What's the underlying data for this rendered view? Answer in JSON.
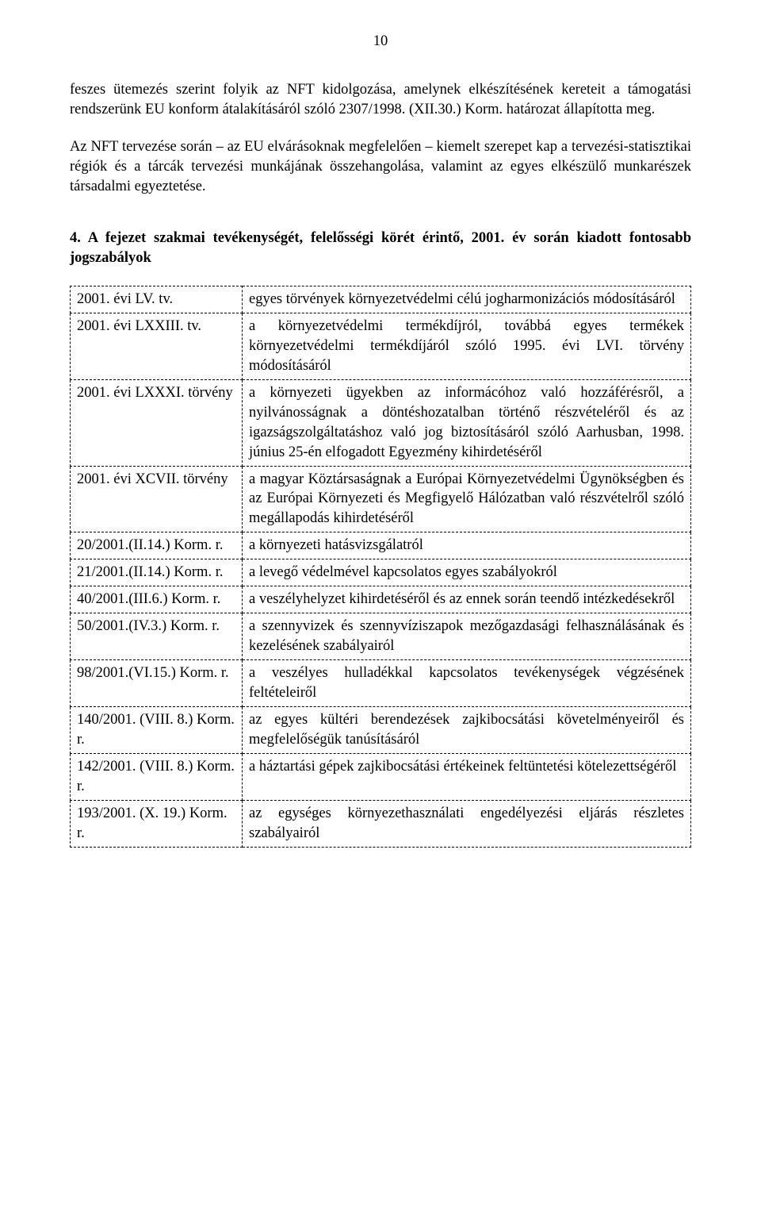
{
  "page_number": "10",
  "para1": "feszes ütemezés szerint folyik az NFT kidolgozása, amelynek elkészítésének kereteit a támogatási rendszerünk EU konform átalakításáról szóló 2307/1998. (XII.30.) Korm. határozat állapította meg.",
  "para2": "Az NFT tervezése során – az EU elvárásoknak megfelelően – kiemelt szerepet kap a tervezési-statisztikai régiók és a tárcák tervezési munkájának összehangolása, valamint az egyes elkészülő munkarészek társadalmi egyeztetése.",
  "section_heading": "4. A fejezet szakmai tevékenységét, felelősségi körét érintő, 2001. év során kiadott fontosabb jogszabályok",
  "table": {
    "rows": [
      {
        "ref": "2001. évi LV. tv.",
        "desc": "egyes törvények környezetvédelmi célú jogharmonizációs módosításáról"
      },
      {
        "ref": "2001. évi LXXIII. tv.",
        "desc": "a környezetvédelmi termékdíjról, továbbá egyes termékek környezetvédelmi termékdíjáról szóló 1995. évi LVI. törvény módosításáról"
      },
      {
        "ref": "2001. évi LXXXI. törvény",
        "desc": "a környezeti ügyekben az informácóhoz való hozzáférésről, a nyilvánosságnak a döntéshozatalban történő részvételéről és az igazságszolgáltatáshoz való jog biztosításáról szóló Aarhusban, 1998. június 25-én elfogadott Egyezmény kihirdetéséről"
      },
      {
        "ref": "2001. évi XCVII. törvény",
        "desc": "a magyar Köztársaságnak a Európai Környezetvédelmi Ügynökségben és az Európai Környezeti és Megfigyelő Hálózatban való részvételről szóló megállapodás kihirdetéséről"
      },
      {
        "ref": "20/2001.(II.14.) Korm. r.",
        "desc": "a környezeti hatásvizsgálatról"
      },
      {
        "ref": "21/2001.(II.14.) Korm. r.",
        "desc": "a levegő védelmével kapcsolatos egyes szabályokról"
      },
      {
        "ref": "40/2001.(III.6.) Korm. r.",
        "desc": "a veszélyhelyzet kihirdetéséről és az ennek során teendő intézkedésekről"
      },
      {
        "ref": "50/2001.(IV.3.) Korm. r.",
        "desc": "a szennyvizek és szennyvíziszapok mezőgazdasági felhasználásának és kezelésének szabályairól"
      },
      {
        "ref": "98/2001.(VI.15.) Korm. r.",
        "desc": "a veszélyes hulladékkal kapcsolatos tevékenységek végzésének feltételeiről"
      },
      {
        "ref": "140/2001. (VIII. 8.) Korm. r.",
        "desc": "az egyes kültéri berendezések zajkibocsátási követelményeiről és megfelelőségük tanúsításáról"
      },
      {
        "ref": "142/2001. (VIII. 8.) Korm. r.",
        "desc": "a háztartási gépek zajkibocsátási értékeinek feltüntetési kötelezettségéről"
      },
      {
        "ref": "193/2001. (X. 19.) Korm. r.",
        "desc": "az egységes környezethasználati engedélyezési eljárás részletes szabályairól"
      }
    ]
  }
}
